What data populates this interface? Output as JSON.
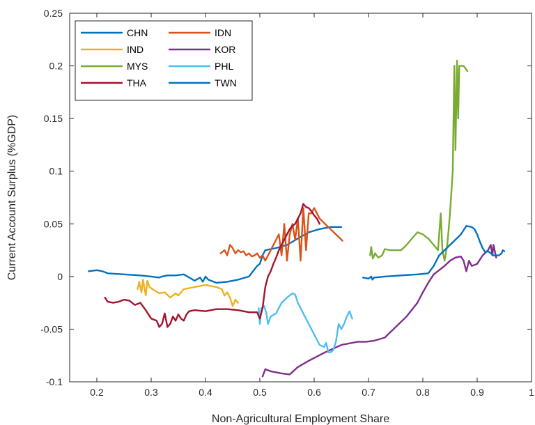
{
  "chart_data": {
    "type": "line",
    "xlabel": "Non-Agricultural Employment Share",
    "ylabel": "Current Account Surplus (%GDP)",
    "xlim": [
      0.15,
      1.0
    ],
    "ylim": [
      -0.1,
      0.25
    ],
    "xticks": [
      0.2,
      0.3,
      0.4,
      0.5,
      0.6,
      0.7,
      0.8,
      0.9,
      1
    ],
    "xtick_labels": [
      "0.2",
      "0.3",
      "0.4",
      "0.5",
      "0.6",
      "0.7",
      "0.8",
      "0.9",
      "1"
    ],
    "yticks": [
      -0.1,
      -0.05,
      0,
      0.05,
      0.1,
      0.15,
      0.2,
      0.25
    ],
    "ytick_labels": [
      "-0.1",
      "-0.05",
      "0",
      "0.05",
      "0.1",
      "0.15",
      "0.2",
      "0.25"
    ],
    "grid": false,
    "legend_position": "top-left",
    "series": [
      {
        "name": "CHN",
        "color": "#0072BD",
        "points": [
          [
            0.185,
            0.005
          ],
          [
            0.2,
            0.006
          ],
          [
            0.21,
            0.005
          ],
          [
            0.22,
            0.003
          ],
          [
            0.25,
            0.002
          ],
          [
            0.28,
            0.001
          ],
          [
            0.3,
            0.0
          ],
          [
            0.315,
            -0.001
          ],
          [
            0.32,
            0.0
          ],
          [
            0.33,
            0.001
          ],
          [
            0.345,
            0.001
          ],
          [
            0.36,
            0.002
          ],
          [
            0.38,
            -0.004
          ],
          [
            0.39,
            -0.001
          ],
          [
            0.395,
            -0.005
          ],
          [
            0.4,
            0.0
          ],
          [
            0.405,
            -0.003
          ],
          [
            0.42,
            -0.006
          ],
          [
            0.44,
            -0.005
          ],
          [
            0.46,
            -0.003
          ],
          [
            0.48,
            0.0
          ],
          [
            0.495,
            0.01
          ],
          [
            0.5,
            0.012
          ],
          [
            0.505,
            0.02
          ],
          [
            0.51,
            0.025
          ],
          [
            0.53,
            0.027
          ],
          [
            0.55,
            0.03
          ],
          [
            0.57,
            0.036
          ],
          [
            0.59,
            0.042
          ],
          [
            0.61,
            0.045
          ],
          [
            0.63,
            0.047
          ],
          [
            0.65,
            0.047
          ]
        ]
      },
      {
        "name": "IDN",
        "color": "#D95319",
        "points": [
          [
            0.428,
            0.022
          ],
          [
            0.435,
            0.025
          ],
          [
            0.44,
            0.02
          ],
          [
            0.445,
            0.03
          ],
          [
            0.45,
            0.027
          ],
          [
            0.455,
            0.022
          ],
          [
            0.46,
            0.025
          ],
          [
            0.465,
            0.023
          ],
          [
            0.47,
            0.024
          ],
          [
            0.475,
            0.02
          ],
          [
            0.48,
            0.022
          ],
          [
            0.485,
            0.019
          ],
          [
            0.49,
            0.02
          ],
          [
            0.495,
            0.022
          ],
          [
            0.5,
            0.018
          ],
          [
            0.505,
            0.02
          ],
          [
            0.51,
            0.015
          ],
          [
            0.52,
            0.025
          ],
          [
            0.53,
            0.035
          ],
          [
            0.535,
            0.04
          ],
          [
            0.54,
            0.02
          ],
          [
            0.545,
            0.05
          ],
          [
            0.55,
            0.015
          ],
          [
            0.555,
            0.04
          ],
          [
            0.56,
            0.05
          ],
          [
            0.565,
            0.035
          ],
          [
            0.57,
            0.055
          ],
          [
            0.575,
            0.015
          ],
          [
            0.58,
            0.065
          ],
          [
            0.585,
            0.025
          ],
          [
            0.59,
            0.06
          ],
          [
            0.595,
            0.06
          ],
          [
            0.6,
            0.065
          ],
          [
            0.61,
            0.055
          ],
          [
            0.62,
            0.05
          ],
          [
            0.63,
            0.045
          ],
          [
            0.64,
            0.04
          ],
          [
            0.652,
            0.034
          ]
        ]
      },
      {
        "name": "IND",
        "color": "#EDB120",
        "points": [
          [
            0.275,
            -0.012
          ],
          [
            0.278,
            -0.005
          ],
          [
            0.282,
            -0.015
          ],
          [
            0.285,
            -0.003
          ],
          [
            0.29,
            -0.018
          ],
          [
            0.293,
            -0.004
          ],
          [
            0.297,
            -0.01
          ],
          [
            0.305,
            -0.013
          ],
          [
            0.315,
            -0.016
          ],
          [
            0.325,
            -0.015
          ],
          [
            0.335,
            -0.02
          ],
          [
            0.345,
            -0.016
          ],
          [
            0.35,
            -0.018
          ],
          [
            0.36,
            -0.012
          ],
          [
            0.38,
            -0.01
          ],
          [
            0.4,
            -0.008
          ],
          [
            0.42,
            -0.01
          ],
          [
            0.43,
            -0.012
          ],
          [
            0.435,
            -0.018
          ],
          [
            0.44,
            -0.015
          ],
          [
            0.445,
            -0.02
          ],
          [
            0.45,
            -0.028
          ],
          [
            0.455,
            -0.022
          ],
          [
            0.46,
            -0.025
          ]
        ]
      },
      {
        "name": "KOR",
        "color": "#7E2F8E",
        "points": [
          [
            0.505,
            -0.095
          ],
          [
            0.51,
            -0.088
          ],
          [
            0.52,
            -0.09
          ],
          [
            0.54,
            -0.092
          ],
          [
            0.555,
            -0.093
          ],
          [
            0.57,
            -0.086
          ],
          [
            0.59,
            -0.08
          ],
          [
            0.62,
            -0.072
          ],
          [
            0.65,
            -0.065
          ],
          [
            0.68,
            -0.062
          ],
          [
            0.695,
            -0.062
          ],
          [
            0.71,
            -0.061
          ],
          [
            0.73,
            -0.058
          ],
          [
            0.75,
            -0.048
          ],
          [
            0.77,
            -0.038
          ],
          [
            0.79,
            -0.025
          ],
          [
            0.8,
            -0.015
          ],
          [
            0.81,
            -0.006
          ],
          [
            0.82,
            0.002
          ],
          [
            0.83,
            0.006
          ],
          [
            0.84,
            0.01
          ],
          [
            0.85,
            0.015
          ],
          [
            0.86,
            0.018
          ],
          [
            0.87,
            0.019
          ],
          [
            0.875,
            0.015
          ],
          [
            0.88,
            0.005
          ],
          [
            0.885,
            0.015
          ],
          [
            0.89,
            0.01
          ],
          [
            0.9,
            0.012
          ],
          [
            0.91,
            0.02
          ],
          [
            0.92,
            0.025
          ],
          [
            0.925,
            0.03
          ],
          [
            0.928,
            0.02
          ],
          [
            0.93,
            0.03
          ],
          [
            0.935,
            0.018
          ]
        ]
      },
      {
        "name": "MYS",
        "color": "#77AC30",
        "points": [
          [
            0.703,
            0.02
          ],
          [
            0.705,
            0.028
          ],
          [
            0.708,
            0.017
          ],
          [
            0.712,
            0.022
          ],
          [
            0.718,
            0.018
          ],
          [
            0.725,
            0.02
          ],
          [
            0.73,
            0.026
          ],
          [
            0.74,
            0.025
          ],
          [
            0.76,
            0.025
          ],
          [
            0.77,
            0.03
          ],
          [
            0.78,
            0.036
          ],
          [
            0.79,
            0.042
          ],
          [
            0.8,
            0.04
          ],
          [
            0.81,
            0.036
          ],
          [
            0.82,
            0.03
          ],
          [
            0.828,
            0.025
          ],
          [
            0.83,
            0.04
          ],
          [
            0.833,
            0.06
          ],
          [
            0.836,
            0.025
          ],
          [
            0.84,
            0.015
          ],
          [
            0.845,
            0.03
          ],
          [
            0.85,
            0.06
          ],
          [
            0.855,
            0.1
          ],
          [
            0.858,
            0.2
          ],
          [
            0.86,
            0.12
          ],
          [
            0.863,
            0.205
          ],
          [
            0.865,
            0.15
          ],
          [
            0.867,
            0.2
          ],
          [
            0.87,
            0.2
          ],
          [
            0.875,
            0.2
          ],
          [
            0.882,
            0.195
          ]
        ]
      },
      {
        "name": "PHL",
        "color": "#4DBEEE",
        "points": [
          [
            0.498,
            -0.03
          ],
          [
            0.5,
            -0.045
          ],
          [
            0.503,
            -0.03
          ],
          [
            0.508,
            -0.028
          ],
          [
            0.512,
            -0.035
          ],
          [
            0.515,
            -0.045
          ],
          [
            0.52,
            -0.038
          ],
          [
            0.53,
            -0.035
          ],
          [
            0.54,
            -0.025
          ],
          [
            0.55,
            -0.02
          ],
          [
            0.56,
            -0.016
          ],
          [
            0.565,
            -0.017
          ],
          [
            0.57,
            -0.025
          ],
          [
            0.58,
            -0.035
          ],
          [
            0.59,
            -0.045
          ],
          [
            0.6,
            -0.055
          ],
          [
            0.61,
            -0.065
          ],
          [
            0.618,
            -0.067
          ],
          [
            0.622,
            -0.063
          ],
          [
            0.626,
            -0.072
          ],
          [
            0.63,
            -0.072
          ],
          [
            0.635,
            -0.07
          ],
          [
            0.64,
            -0.062
          ],
          [
            0.645,
            -0.045
          ],
          [
            0.65,
            -0.05
          ],
          [
            0.655,
            -0.045
          ],
          [
            0.66,
            -0.038
          ],
          [
            0.665,
            -0.033
          ],
          [
            0.67,
            -0.04
          ]
        ]
      },
      {
        "name": "THA",
        "color": "#A2142F",
        "points": [
          [
            0.215,
            -0.02
          ],
          [
            0.22,
            -0.024
          ],
          [
            0.23,
            -0.025
          ],
          [
            0.24,
            -0.024
          ],
          [
            0.25,
            -0.022
          ],
          [
            0.26,
            -0.023
          ],
          [
            0.27,
            -0.027
          ],
          [
            0.28,
            -0.025
          ],
          [
            0.29,
            -0.032
          ],
          [
            0.3,
            -0.04
          ],
          [
            0.31,
            -0.042
          ],
          [
            0.315,
            -0.048
          ],
          [
            0.32,
            -0.045
          ],
          [
            0.325,
            -0.035
          ],
          [
            0.33,
            -0.048
          ],
          [
            0.335,
            -0.045
          ],
          [
            0.34,
            -0.038
          ],
          [
            0.345,
            -0.042
          ],
          [
            0.35,
            -0.036
          ],
          [
            0.355,
            -0.04
          ],
          [
            0.36,
            -0.042
          ],
          [
            0.365,
            -0.036
          ],
          [
            0.37,
            -0.033
          ],
          [
            0.38,
            -0.032
          ],
          [
            0.4,
            -0.033
          ],
          [
            0.42,
            -0.031
          ],
          [
            0.44,
            -0.031
          ],
          [
            0.46,
            -0.032
          ],
          [
            0.48,
            -0.034
          ],
          [
            0.495,
            -0.034
          ],
          [
            0.5,
            -0.04
          ],
          [
            0.505,
            -0.03
          ],
          [
            0.51,
            -0.01
          ],
          [
            0.515,
            0.0
          ],
          [
            0.52,
            0.005
          ],
          [
            0.525,
            0.012
          ],
          [
            0.53,
            0.018
          ],
          [
            0.535,
            0.025
          ],
          [
            0.54,
            0.03
          ],
          [
            0.545,
            0.035
          ],
          [
            0.55,
            0.04
          ],
          [
            0.555,
            0.045
          ],
          [
            0.56,
            0.048
          ],
          [
            0.565,
            0.05
          ],
          [
            0.57,
            0.055
          ],
          [
            0.575,
            0.06
          ],
          [
            0.58,
            0.069
          ],
          [
            0.585,
            0.066
          ],
          [
            0.59,
            0.065
          ],
          [
            0.595,
            0.062
          ],
          [
            0.6,
            0.058
          ],
          [
            0.605,
            0.055
          ],
          [
            0.61,
            0.05
          ]
        ]
      },
      {
        "name": "TWN",
        "color": "#0072BD",
        "points": [
          [
            0.69,
            -0.001
          ],
          [
            0.7,
            -0.002
          ],
          [
            0.705,
            0.0
          ],
          [
            0.707,
            -0.003
          ],
          [
            0.71,
            -0.001
          ],
          [
            0.73,
            0.0
          ],
          [
            0.76,
            0.001
          ],
          [
            0.79,
            0.002
          ],
          [
            0.81,
            0.003
          ],
          [
            0.82,
            0.01
          ],
          [
            0.83,
            0.02
          ],
          [
            0.84,
            0.025
          ],
          [
            0.85,
            0.03
          ],
          [
            0.86,
            0.035
          ],
          [
            0.87,
            0.04
          ],
          [
            0.875,
            0.044
          ],
          [
            0.88,
            0.048
          ],
          [
            0.89,
            0.047
          ],
          [
            0.895,
            0.045
          ],
          [
            0.9,
            0.04
          ],
          [
            0.905,
            0.033
          ],
          [
            0.91,
            0.027
          ],
          [
            0.915,
            0.023
          ],
          [
            0.92,
            0.024
          ],
          [
            0.93,
            0.02
          ],
          [
            0.94,
            0.02
          ],
          [
            0.945,
            0.022
          ],
          [
            0.947,
            0.025
          ],
          [
            0.95,
            0.024
          ]
        ]
      }
    ]
  }
}
